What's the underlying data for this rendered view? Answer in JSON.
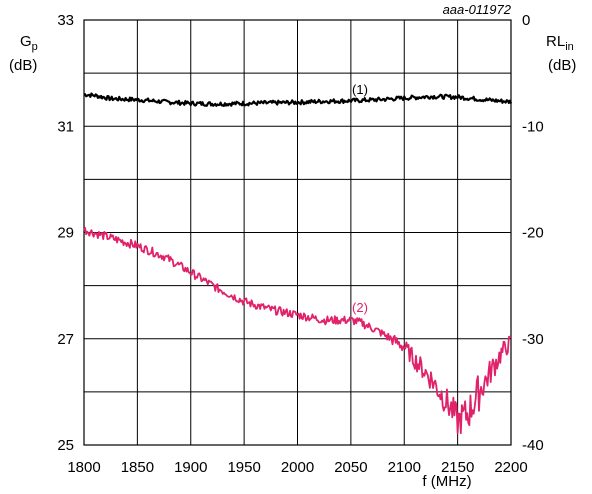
{
  "chart_data": {
    "type": "line",
    "reference": "aaa-011972",
    "xlabel": "f (MHz)",
    "ylabel_left": {
      "main": "G",
      "sub": "p",
      "unit": "(dB)"
    },
    "ylabel_right": {
      "main": "RL",
      "sub": "in",
      "unit": "(dB)"
    },
    "xlim": [
      1800,
      2200
    ],
    "ylim_left": [
      25,
      33
    ],
    "ylim_right": [
      -40,
      0
    ],
    "x_ticks": [
      "1800",
      "1850",
      "1900",
      "1950",
      "2000",
      "2050",
      "2100",
      "2150",
      "2200"
    ],
    "y_left_ticks": [
      "25",
      "27",
      "29",
      "31",
      "33"
    ],
    "y_right_ticks": [
      "-40",
      "-30",
      "-20",
      "-10",
      "0"
    ],
    "grid": true,
    "series": [
      {
        "name": "(1)",
        "axis": "left",
        "color": "#000000",
        "x": [
          1800,
          1810,
          1825,
          1850,
          1875,
          1900,
          1925,
          1950,
          1975,
          2000,
          2025,
          2050,
          2075,
          2100,
          2125,
          2150,
          2175,
          2200
        ],
        "y": [
          31.6,
          31.58,
          31.52,
          31.5,
          31.46,
          31.43,
          31.42,
          31.43,
          31.44,
          31.45,
          31.47,
          31.48,
          31.5,
          31.53,
          31.56,
          31.55,
          31.5,
          31.46
        ]
      },
      {
        "name": "(2)",
        "axis": "left",
        "color": "#e0226b",
        "x": [
          1800,
          1825,
          1850,
          1875,
          1900,
          1925,
          1950,
          1975,
          2000,
          2025,
          2050,
          2060,
          2075,
          2100,
          2110,
          2125,
          2135,
          2145,
          2150,
          2160,
          2170,
          2180,
          2190,
          2200
        ],
        "y": [
          29.05,
          28.9,
          28.75,
          28.55,
          28.25,
          27.95,
          27.7,
          27.55,
          27.45,
          27.35,
          27.35,
          27.3,
          27.15,
          26.85,
          26.6,
          26.25,
          25.95,
          25.65,
          25.45,
          25.6,
          26.0,
          26.35,
          26.7,
          26.95
        ]
      }
    ]
  }
}
